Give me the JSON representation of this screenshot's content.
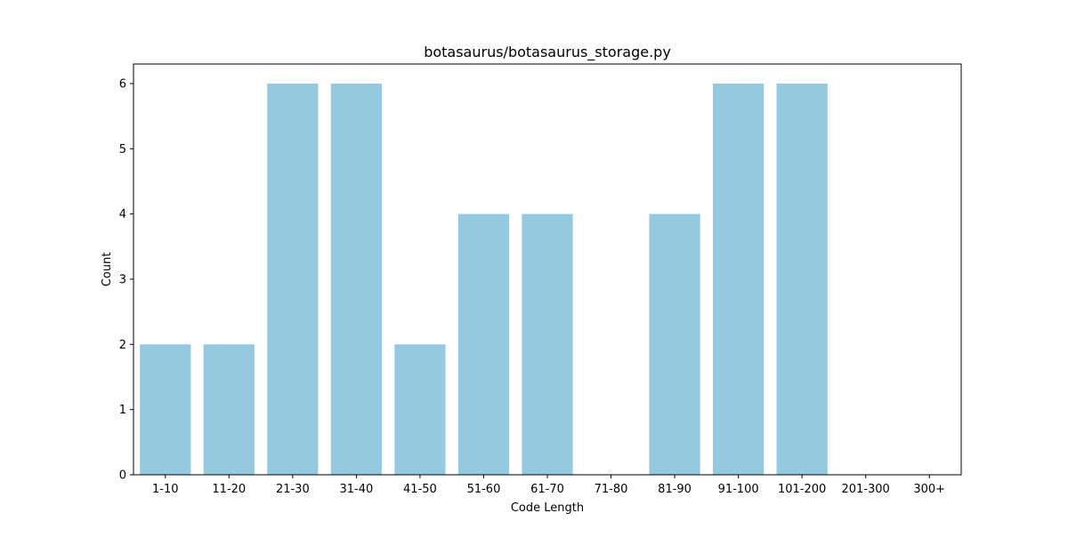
{
  "chart_data": {
    "type": "bar",
    "title": "botasaurus/botasaurus_storage.py",
    "xlabel": "Code Length",
    "ylabel": "Count",
    "categories": [
      "1-10",
      "11-20",
      "21-30",
      "31-40",
      "41-50",
      "51-60",
      "61-70",
      "71-80",
      "81-90",
      "91-100",
      "101-200",
      "201-300",
      "300+"
    ],
    "values": [
      2,
      2,
      6,
      6,
      2,
      4,
      4,
      0,
      4,
      6,
      6,
      0,
      0
    ],
    "ylim": [
      0,
      6.3
    ],
    "yticks": [
      0,
      1,
      2,
      3,
      4,
      5,
      6
    ],
    "grid": false,
    "bar_color": "#94c9df"
  }
}
